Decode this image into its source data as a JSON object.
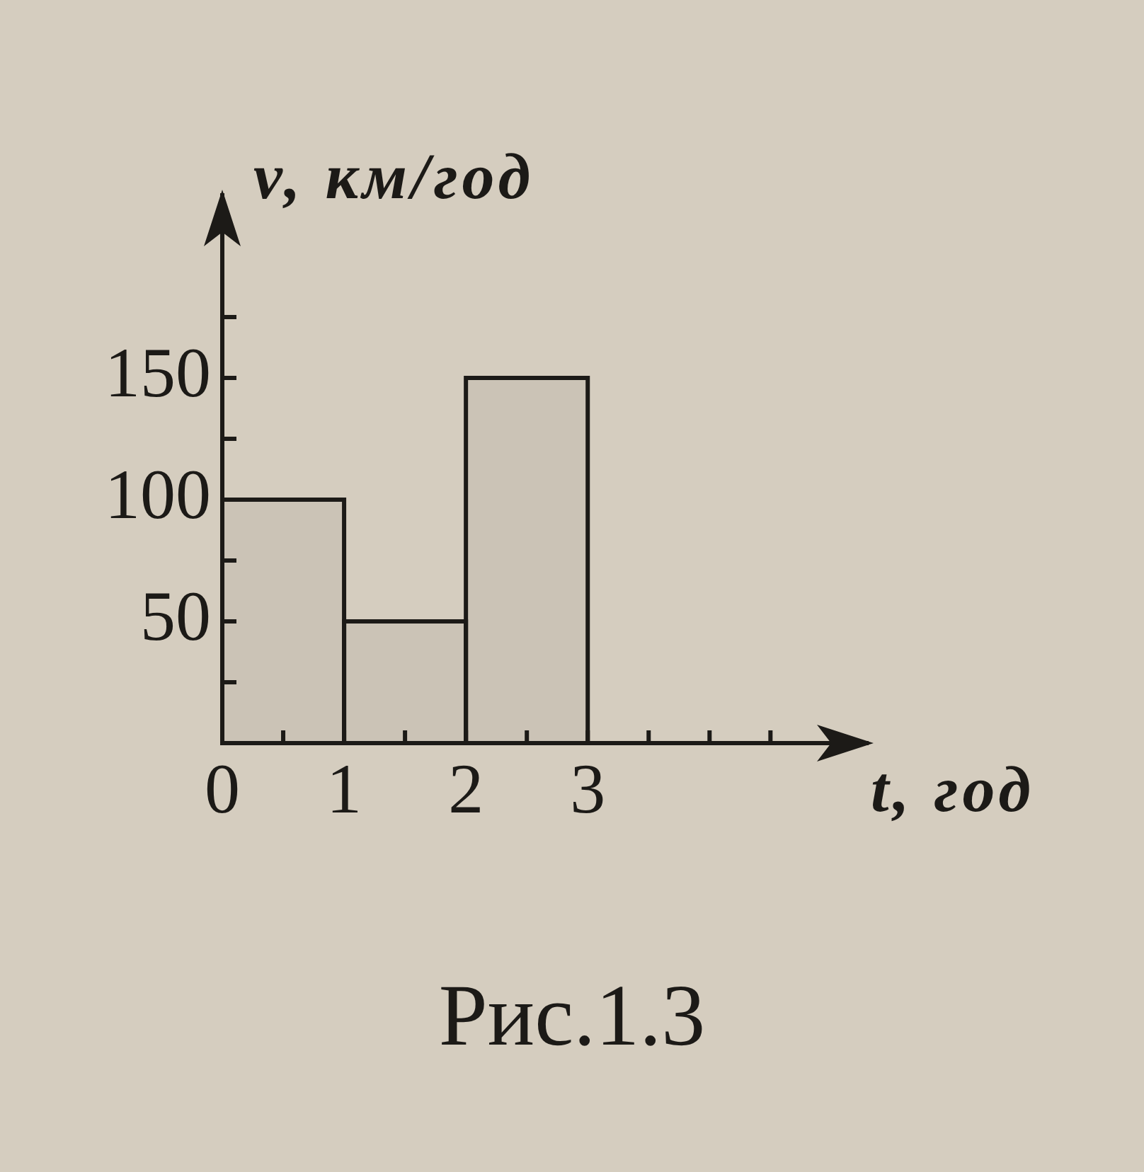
{
  "chart_data": {
    "type": "histogram",
    "bins": [
      0,
      1,
      2,
      3
    ],
    "values": [
      100,
      50,
      150
    ],
    "color": "#1c1a17",
    "xlabel": "t, год",
    "ylabel": "v, км/год",
    "xlim": [
      0,
      5.3
    ],
    "xticks": [
      0,
      {
        "value": 0.5,
        "label": null
      },
      1,
      {
        "value": 1.5,
        "label": null
      },
      2,
      {
        "value": 2.5,
        "label": null
      },
      3,
      {
        "value": 3.5,
        "label": null
      },
      {
        "value": 4,
        "label": null
      },
      {
        "value": 4.5,
        "label": null
      }
    ],
    "ylim": [
      0,
      225
    ],
    "yticks": [
      {
        "value": 25,
        "label": null
      },
      50,
      {
        "value": 75,
        "label": null
      },
      100,
      {
        "value": 125,
        "label": null
      },
      150,
      {
        "value": 175,
        "label": null
      }
    ],
    "annotations": [
      "Рис.1.3"
    ]
  }
}
